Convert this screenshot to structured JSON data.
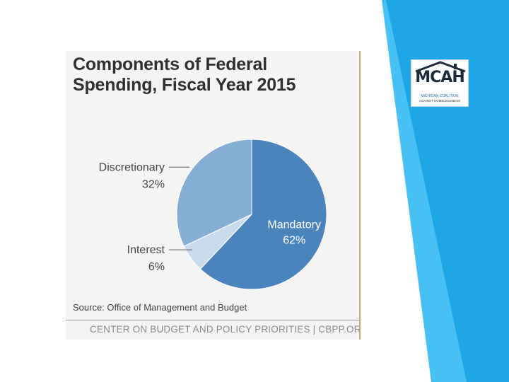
{
  "chart_data": {
    "type": "pie",
    "title": "Components of Federal Spending, Fiscal Year 2015",
    "title_lines": [
      "Components of Federal",
      "Spending, Fiscal Year 2015"
    ],
    "slices": [
      {
        "label": "Mandatory",
        "value": 62,
        "display": "62%",
        "color": "#4a84bd",
        "label_position": "inside"
      },
      {
        "label": "Interest",
        "value": 6,
        "display": "6%",
        "color": "#c9dced",
        "label_position": "outside-left"
      },
      {
        "label": "Discretionary",
        "value": 32,
        "display": "32%",
        "color": "#85aed6",
        "label_position": "outside-left"
      }
    ],
    "start_angle": "12 o'clock",
    "direction": "clockwise",
    "source": "Source: Office of Management and Budget",
    "footer": "CENTER ON BUDGET AND POLICY PRIORITIES | CBPP.ORG"
  },
  "logo": {
    "wordmark": "MCAH",
    "org_line1": "MICHIGAN COALITION",
    "org_line2": "AGAINST HOMELESSNESS"
  },
  "colors": {
    "accent_blue": "#1ea7e6",
    "accent_blue_light": "#47c0f3",
    "pie_edge": "#ffffff"
  }
}
